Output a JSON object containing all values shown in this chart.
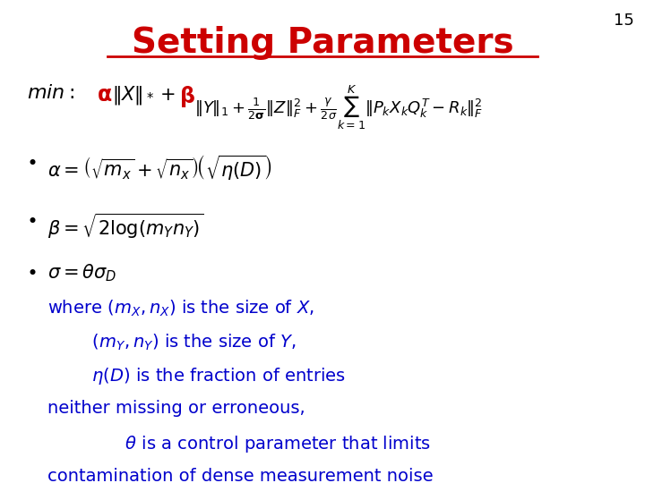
{
  "title": "Setting Parameters",
  "title_color": "#CC0000",
  "title_fontsize": 28,
  "slide_number": "15",
  "background_color": "#FFFFFF",
  "alpha_beta_color": "#CC0000",
  "text_color": "#0000CC",
  "min_label": "$\\mathit{min:}$",
  "alpha_sym": "$\\mathbf{\\alpha}$",
  "after_alpha": "$\\|X\\|_* +\\ $",
  "beta_sym": "$\\mathbf{\\beta}$",
  "after_beta": "$\\|Y\\|_1 + \\frac{1}{2\\mathbf{\\sigma}}\\|Z\\|_F^2 + \\frac{\\gamma}{2\\sigma}\\sum_{k=1}^{K}\\|P_k X_k Q_k^T - R_k\\|_F^2$",
  "bullet1": "$\\alpha = \\left(\\sqrt{m_x} + \\sqrt{n_x}\\right)\\!\\left(\\sqrt{\\eta(D)}\\right)$",
  "bullet2": "$\\beta = \\sqrt{2\\log(m_Y n_Y)}$",
  "bullet3": "$\\sigma = \\theta\\sigma_D$",
  "text_line1": "where $(m_X,n_X)$ is the size of $X$,",
  "text_line2": "        $(m_Y,n_Y)$ is the size of $Y$,",
  "text_line3": "        $\\eta(D)$ is the fraction of entries",
  "text_line4": "neither missing or erroneous,",
  "text_line5": "              $\\theta$ is a control parameter that limits",
  "text_line6": "contamination of dense measurement noise"
}
